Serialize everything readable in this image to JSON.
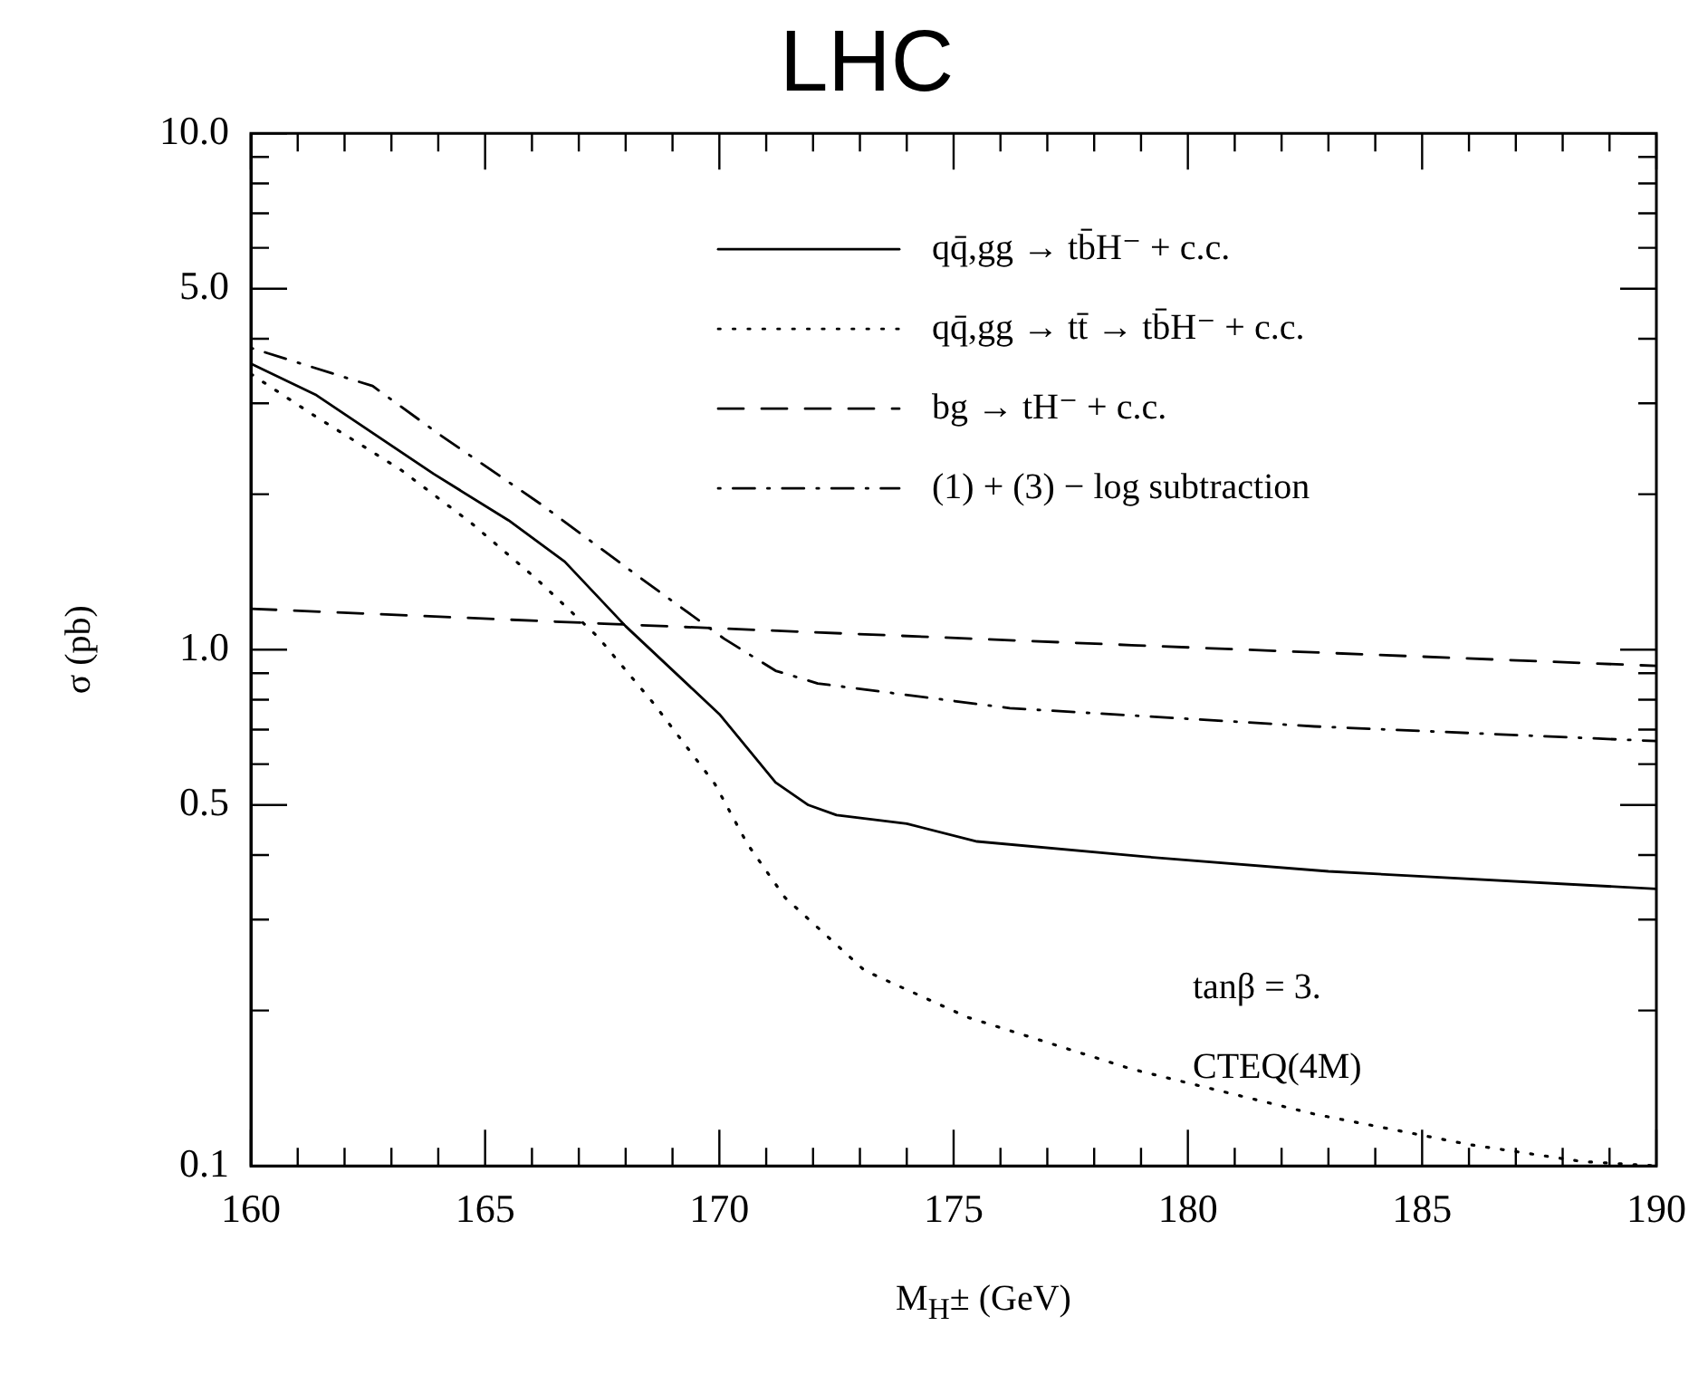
{
  "chart_data": {
    "type": "line",
    "title": "LHC",
    "xlabel": "M$_{H}$± (GeV)",
    "ylabel": "σ (pb)",
    "log": "y",
    "grid": false,
    "legend": "top right",
    "marker": "none",
    "xlim": [
      160,
      190
    ],
    "ylim": [
      0.1,
      10
    ],
    "xticks": [
      160,
      {
        "value": 161,
        "label": null
      },
      {
        "value": 162,
        "label": null
      },
      {
        "value": 163,
        "label": null
      },
      {
        "value": 164,
        "label": null
      },
      165,
      {
        "value": 166,
        "label": null
      },
      {
        "value": 167,
        "label": null
      },
      {
        "value": 168,
        "label": null
      },
      {
        "value": 169,
        "label": null
      },
      170,
      {
        "value": 171,
        "label": null
      },
      {
        "value": 172,
        "label": null
      },
      {
        "value": 173,
        "label": null
      },
      {
        "value": 174,
        "label": null
      },
      175,
      {
        "value": 176,
        "label": null
      },
      {
        "value": 177,
        "label": null
      },
      {
        "value": 178,
        "label": null
      },
      {
        "value": 179,
        "label": null
      },
      180,
      {
        "value": 181,
        "label": null
      },
      {
        "value": 182,
        "label": null
      },
      {
        "value": 183,
        "label": null
      },
      {
        "value": 184,
        "label": null
      },
      185,
      {
        "value": 186,
        "label": null
      },
      {
        "value": 187,
        "label": null
      },
      {
        "value": 188,
        "label": null
      },
      {
        "value": 189,
        "label": null
      },
      190
    ],
    "yticks": [
      0.1,
      {
        "value": 0.2,
        "label": null
      },
      {
        "value": 0.3,
        "label": null
      },
      {
        "value": 0.4,
        "label": null
      },
      {
        "value": 0.5,
        "label": "0.5"
      },
      {
        "value": 0.6,
        "label": null
      },
      {
        "value": 0.7,
        "label": null
      },
      {
        "value": 0.8,
        "label": null
      },
      {
        "value": 0.9,
        "label": null
      },
      {
        "value": 1,
        "label": "1.0"
      },
      {
        "value": 2,
        "label": null
      },
      {
        "value": 3,
        "label": null
      },
      {
        "value": 4,
        "label": null
      },
      {
        "value": 5,
        "label": "5.0"
      },
      {
        "value": 6,
        "label": null
      },
      {
        "value": 7,
        "label": null
      },
      {
        "value": 8,
        "label": null
      },
      {
        "value": 9,
        "label": null
      },
      {
        "value": 10,
        "label": "10.0"
      }
    ],
    "annotations": [
      "tanβ = 3.",
      "CTEQ(4M)"
    ],
    "series": [
      {
        "name": "qq̄,gg → tb̄H⁻ + c.c.",
        "color": "#000000",
        "line_style": "solid",
        "x": [
          160,
          161.4,
          163.9,
          165.5,
          166.7,
          168,
          170,
          171.2,
          171.9,
          172.5,
          174,
          175.5,
          179.1,
          183,
          190
        ],
        "values": [
          3.58,
          3.11,
          2.19,
          1.78,
          1.48,
          1.11,
          0.75,
          0.553,
          0.5,
          0.478,
          0.46,
          0.425,
          0.397,
          0.372,
          0.344
        ]
      },
      {
        "name": "qq̄,gg → tt̄ → tb̄H⁻ + c.c.",
        "color": "#000000",
        "line_style": "dotted",
        "x": [
          160,
          161.3,
          163.2,
          164.7,
          166.1,
          167.4,
          168.6,
          169.9,
          170.6,
          171.4,
          173.1,
          175.3,
          178.8,
          182.7,
          186,
          188.4,
          190
        ],
        "values": [
          3.42,
          2.86,
          2.23,
          1.76,
          1.37,
          1.06,
          0.786,
          0.55,
          0.42,
          0.331,
          0.239,
          0.194,
          0.154,
          0.126,
          0.11,
          0.102,
          0.1
        ]
      },
      {
        "name": "bg → tH⁻ + c.c.",
        "color": "#000000",
        "line_style": "dashed",
        "x": [
          160,
          167.8,
          178.8,
          190
        ],
        "values": [
          1.2,
          1.12,
          1.02,
          0.93
        ]
      },
      {
        "name": "(1) + (3) − log subtraction",
        "color": "#000000",
        "line_style": "dashdot",
        "x": [
          160,
          162.6,
          164,
          166.2,
          168.3,
          170.1,
          171.2,
          172.1,
          176.2,
          182.7,
          190
        ],
        "values": [
          3.84,
          3.24,
          2.62,
          1.91,
          1.38,
          1.05,
          0.91,
          0.86,
          0.77,
          0.71,
          0.665
        ]
      }
    ]
  }
}
